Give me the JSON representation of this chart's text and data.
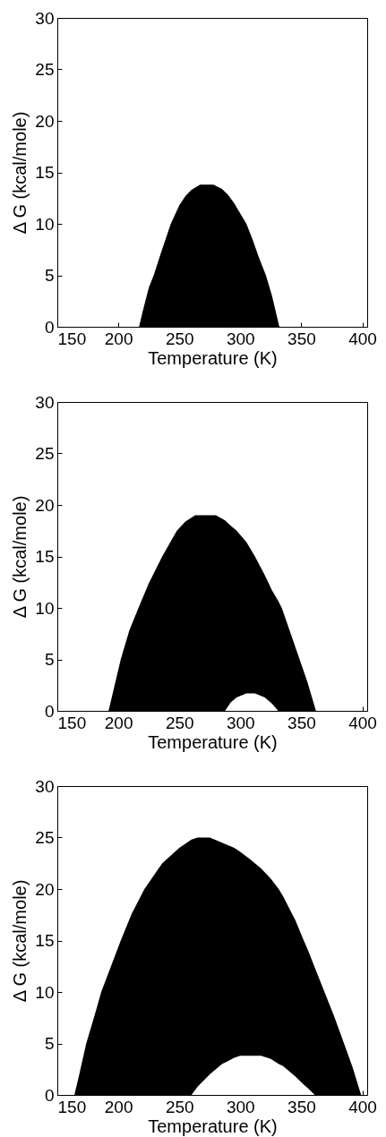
{
  "chart_data": [
    {
      "type": "area",
      "xlabel": "Temperature (K)",
      "ylabel": "Δ G (kcal/mole)",
      "xlim": [
        150,
        404
      ],
      "ylim": [
        0,
        30
      ],
      "xticks": [
        150,
        200,
        250,
        300,
        350,
        400
      ],
      "yticks": [
        0,
        5,
        10,
        15,
        20,
        25,
        30
      ],
      "grid": false,
      "x": [
        217,
        220,
        225,
        229,
        235,
        243,
        250,
        255,
        260,
        267,
        278,
        285,
        290,
        295,
        300,
        305,
        310,
        315,
        321,
        326,
        330,
        332
      ],
      "series": [
        {
          "color": "#000000",
          "values": [
            0,
            1.5,
            3.8,
            5,
            7.2,
            10,
            11.8,
            12.7,
            13.3,
            13.8,
            13.8,
            13.4,
            12.8,
            12,
            11,
            10,
            8.5,
            6.8,
            5,
            3,
            1,
            0
          ]
        }
      ]
    },
    {
      "type": "area",
      "xlabel": "Temperature (K)",
      "ylabel": "Δ G (kcal/mole)",
      "xlim": [
        150,
        404
      ],
      "ylim": [
        0,
        30
      ],
      "xticks": [
        150,
        200,
        250,
        300,
        350,
        400
      ],
      "yticks": [
        0,
        5,
        10,
        15,
        20,
        25,
        30
      ],
      "grid": false,
      "x": [
        192,
        196,
        202,
        209,
        216.5,
        225,
        236,
        248,
        255,
        263,
        270,
        280,
        287.5,
        292,
        297,
        305,
        312,
        320,
        326,
        331,
        334,
        341,
        348.6,
        355,
        362
      ],
      "series": [
        {
          "color": "#000000",
          "values": [
            0,
            2,
            5,
            7.8,
            10,
            12.4,
            15,
            17.5,
            18.4,
            19,
            19,
            19,
            18.5,
            18,
            17.5,
            16.4,
            15,
            13.2,
            11.7,
            10.7,
            10,
            7.6,
            5,
            2.8,
            0
          ]
        },
        {
          "color": "#ffffff",
          "x": [
            287.5,
            292,
            297,
            305,
            312,
            320,
            326,
            331
          ],
          "values": [
            0,
            0.8,
            1.3,
            1.7,
            1.7,
            1.3,
            0.7,
            0
          ]
        }
      ]
    },
    {
      "type": "area",
      "xlabel": "Temperature (K)",
      "ylabel": "Δ G (kcal/mole)",
      "xlim": [
        150,
        404
      ],
      "ylim": [
        0,
        30
      ],
      "xticks": [
        150,
        200,
        250,
        300,
        350,
        400
      ],
      "yticks": [
        0,
        5,
        10,
        15,
        20,
        25,
        30
      ],
      "grid": false,
      "x": [
        164,
        168,
        173.7,
        180,
        186,
        194,
        202,
        211,
        221.4,
        236,
        250,
        260,
        265,
        275,
        285,
        295,
        300,
        308,
        317,
        325,
        331.5,
        335,
        345,
        352,
        355,
        361,
        369,
        377,
        385,
        392,
        399
      ],
      "series": [
        {
          "color": "#000000",
          "values": [
            0,
            2,
            5,
            7.5,
            10,
            12.5,
            15,
            17.6,
            20,
            22.5,
            24,
            24.8,
            25,
            25,
            24.5,
            24,
            23.6,
            22.9,
            22,
            21,
            20,
            19.3,
            17,
            15,
            14.2,
            12.4,
            10,
            7.6,
            5,
            2.7,
            0
          ]
        },
        {
          "color": "#ffffff",
          "x": [
            260,
            265,
            275,
            285,
            295,
            300,
            308,
            317,
            325,
            331.5,
            335,
            345,
            352,
            355,
            361
          ],
          "values": [
            0,
            0.8,
            2,
            3,
            3.6,
            3.8,
            3.8,
            3.8,
            3.5,
            3,
            2.8,
            1.8,
            1,
            0.7,
            0
          ]
        }
      ]
    }
  ]
}
